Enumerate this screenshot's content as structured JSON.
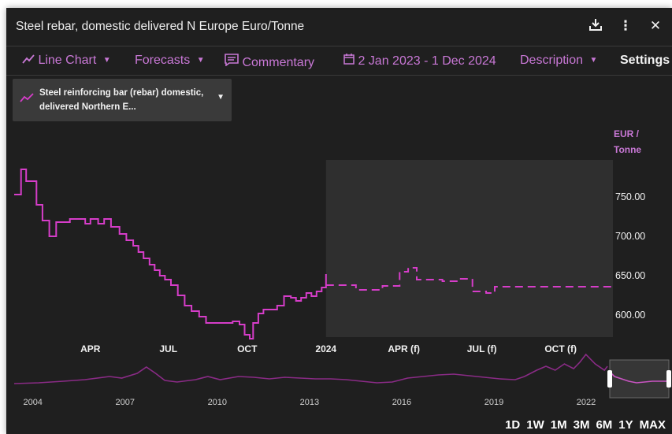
{
  "window": {
    "title": "Steel rebar, domestic delivered N Europe Euro/Tonne"
  },
  "toolbar": {
    "chart_type": "Line Chart",
    "forecasts": "Forecasts",
    "commentary": "Commentary",
    "date_range": "2 Jan 2023 - 1 Dec 2024",
    "description": "Description",
    "settings": "Settings"
  },
  "series_selector": {
    "label": "Steel reinforcing bar (rebar) domestic, delivered Northern E..."
  },
  "range_buttons": [
    "1D",
    "1W",
    "1M",
    "3M",
    "6M",
    "1Y",
    "MAX"
  ],
  "colors": {
    "series": "#d63dc9",
    "accent": "#c978d6",
    "background": "#1f1f1f",
    "forecast_band": "#2f2f2f"
  },
  "chart_data": {
    "type": "line",
    "title": "Steel rebar, domestic delivered N Europe Euro/Tonne",
    "ylabel": "EUR / Tonne",
    "y_ticks": [
      "750.00",
      "700.00",
      "650.00",
      "600.00"
    ],
    "x_ticks": [
      "APR",
      "JUL",
      "OCT",
      "2024",
      "APR (f)",
      "JUL (f)",
      "OCT (f)"
    ],
    "series": [
      {
        "name": "Steel reinforcing bar (rebar) domestic, delivered Northern E...",
        "actual": [
          [
            "2023-01-02",
            753
          ],
          [
            "2023-01-10",
            785
          ],
          [
            "2023-01-16",
            770
          ],
          [
            "2023-01-28",
            740
          ],
          [
            "2023-02-04",
            720
          ],
          [
            "2023-02-12",
            700
          ],
          [
            "2023-02-20",
            718
          ],
          [
            "2023-03-08",
            722
          ],
          [
            "2023-03-26",
            716
          ],
          [
            "2023-04-01",
            722
          ],
          [
            "2023-04-10",
            716
          ],
          [
            "2023-04-17",
            722
          ],
          [
            "2023-04-25",
            712
          ],
          [
            "2023-05-05",
            703
          ],
          [
            "2023-05-13",
            695
          ],
          [
            "2023-05-21",
            688
          ],
          [
            "2023-05-27",
            680
          ],
          [
            "2023-06-02",
            672
          ],
          [
            "2023-06-09",
            664
          ],
          [
            "2023-06-15",
            657
          ],
          [
            "2023-06-21",
            650
          ],
          [
            "2023-06-27",
            645
          ],
          [
            "2023-07-04",
            638
          ],
          [
            "2023-07-12",
            625
          ],
          [
            "2023-07-20",
            612
          ],
          [
            "2023-07-28",
            605
          ],
          [
            "2023-08-06",
            598
          ],
          [
            "2023-08-14",
            590
          ],
          [
            "2023-09-10",
            590
          ],
          [
            "2023-09-14",
            592
          ],
          [
            "2023-09-22",
            588
          ],
          [
            "2023-09-28",
            575
          ],
          [
            "2023-10-04",
            570
          ],
          [
            "2023-10-08",
            590
          ],
          [
            "2023-10-14",
            602
          ],
          [
            "2023-10-20",
            607
          ],
          [
            "2023-11-05",
            612
          ],
          [
            "2023-11-13",
            624
          ],
          [
            "2023-11-21",
            622
          ],
          [
            "2023-11-27",
            618
          ],
          [
            "2023-12-03",
            622
          ],
          [
            "2023-12-09",
            628
          ],
          [
            "2023-12-15",
            624
          ],
          [
            "2023-12-21",
            630
          ],
          [
            "2023-12-27",
            635
          ],
          [
            "2024-01-01",
            652
          ]
        ],
        "forecast": [
          [
            "2024-01-01",
            638
          ],
          [
            "2024-02-05",
            632
          ],
          [
            "2024-03-07",
            637
          ],
          [
            "2024-03-27",
            655
          ],
          [
            "2024-04-06",
            660
          ],
          [
            "2024-04-16",
            645
          ],
          [
            "2024-05-16",
            643
          ],
          [
            "2024-06-05",
            646
          ],
          [
            "2024-06-20",
            630
          ],
          [
            "2024-07-06",
            628
          ],
          [
            "2024-07-16",
            636
          ],
          [
            "2024-12-01",
            638
          ]
        ]
      }
    ],
    "ylim": [
      570,
      800
    ],
    "xlim": [
      "2023-01-02",
      "2024-12-01"
    ],
    "forecast_start": "2024-01-01",
    "grid": false,
    "legend": "top-left dropdown",
    "navigator": {
      "x_ticks": [
        "2004",
        "2007",
        "2010",
        "2013",
        "2016",
        "2019",
        "2022"
      ],
      "selected_range": [
        "2023-01-02",
        "2024-12-01"
      ]
    }
  }
}
